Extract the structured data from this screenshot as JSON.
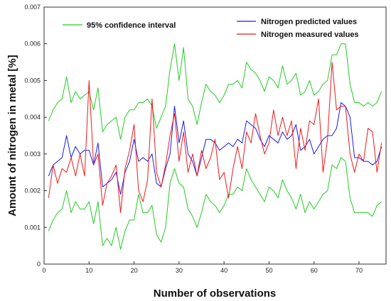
{
  "chart_data": {
    "type": "line",
    "xlabel": "Number of observations",
    "ylabel": "Amount of nitrogen in metal [%]",
    "xlim": [
      0,
      76
    ],
    "ylim": [
      0,
      0.007
    ],
    "xticks": [
      0,
      10,
      20,
      30,
      40,
      50,
      60,
      70
    ],
    "yticks": [
      0,
      0.001,
      0.002,
      0.003,
      0.004,
      0.005,
      0.006,
      0.007
    ],
    "ytick_labels": [
      "0",
      "0.001",
      "0.002",
      "0.003",
      "0.004",
      "0.005",
      "0.006",
      "0.007"
    ],
    "grid": false,
    "legend": [
      {
        "name": "95% confidence interval",
        "color": "#22cc22"
      },
      {
        "name": "Nitrogen predicted values",
        "color": "#1a1aee"
      },
      {
        "name": "Nitrogen measured values",
        "color": "#ee1a1a"
      }
    ],
    "x": [
      1,
      2,
      3,
      4,
      5,
      6,
      7,
      8,
      9,
      10,
      11,
      12,
      13,
      14,
      15,
      16,
      17,
      18,
      19,
      20,
      21,
      22,
      23,
      24,
      25,
      26,
      27,
      28,
      29,
      30,
      31,
      32,
      33,
      34,
      35,
      36,
      37,
      38,
      39,
      40,
      41,
      42,
      43,
      44,
      45,
      46,
      47,
      48,
      49,
      50,
      51,
      52,
      53,
      54,
      55,
      56,
      57,
      58,
      59,
      60,
      61,
      62,
      63,
      64,
      65,
      66,
      67,
      68,
      69,
      70,
      71,
      72,
      73,
      74,
      75
    ],
    "series": [
      {
        "name": "Nitrogen predicted values",
        "color": "#1a1aee",
        "values": [
          0.0024,
          0.0027,
          0.0028,
          0.0029,
          0.0035,
          0.0029,
          0.0032,
          0.003,
          0.0031,
          0.0031,
          0.0027,
          0.0033,
          0.0021,
          0.0022,
          0.0023,
          0.0025,
          0.0019,
          0.0025,
          0.0028,
          0.0034,
          0.0028,
          0.0029,
          0.0028,
          0.003,
          0.0022,
          0.0021,
          0.0026,
          0.003,
          0.0043,
          0.0033,
          0.0039,
          0.003,
          0.0028,
          0.0024,
          0.0029,
          0.0034,
          0.0034,
          0.0033,
          0.0031,
          0.0032,
          0.0033,
          0.0032,
          0.0034,
          0.0033,
          0.0039,
          0.0038,
          0.0037,
          0.0034,
          0.0032,
          0.0035,
          0.0034,
          0.0033,
          0.0036,
          0.0034,
          0.0035,
          0.0038,
          0.0031,
          0.0032,
          0.0034,
          0.003,
          0.0032,
          0.0034,
          0.0035,
          0.0035,
          0.0037,
          0.0044,
          0.0043,
          0.004,
          0.0029,
          0.0029,
          0.0028,
          0.0028,
          0.0027,
          0.0028,
          0.0032
        ]
      },
      {
        "name": "Nitrogen measured values",
        "color": "#ee1a1a",
        "values": [
          0.0018,
          0.0027,
          0.0022,
          0.0026,
          0.0025,
          0.0029,
          0.0024,
          0.003,
          0.0024,
          0.005,
          0.0027,
          0.003,
          0.0016,
          0.0022,
          0.0024,
          0.0027,
          0.0014,
          0.0026,
          0.0031,
          0.0038,
          0.002,
          0.0017,
          0.0023,
          0.0045,
          0.0025,
          0.0021,
          0.0027,
          0.0035,
          0.0041,
          0.0028,
          0.0036,
          0.0025,
          0.003,
          0.0024,
          0.0031,
          0.0026,
          0.0029,
          0.0034,
          0.0023,
          0.0025,
          0.0018,
          0.0026,
          0.0032,
          0.0026,
          0.0036,
          0.0033,
          0.0041,
          0.0035,
          0.003,
          0.0033,
          0.0042,
          0.0035,
          0.004,
          0.0035,
          0.0039,
          0.0026,
          0.0037,
          0.0031,
          0.0039,
          0.0038,
          0.0045,
          0.0025,
          0.0034,
          0.0055,
          0.0042,
          0.0043,
          0.0043,
          0.003,
          0.0025,
          0.003,
          0.0028,
          0.0037,
          0.0036,
          0.0025,
          0.0033
        ]
      },
      {
        "name": "95% confidence interval (upper)",
        "color": "#22cc22",
        "values": [
          0.0039,
          0.0042,
          0.0044,
          0.0045,
          0.0051,
          0.0044,
          0.0047,
          0.0045,
          0.0046,
          0.0047,
          0.0042,
          0.0048,
          0.0036,
          0.0038,
          0.0039,
          0.004,
          0.0034,
          0.004,
          0.0042,
          0.0042,
          0.0044,
          0.0044,
          0.0045,
          0.0043,
          0.0037,
          0.004,
          0.0043,
          0.0053,
          0.006,
          0.005,
          0.0059,
          0.0045,
          0.0043,
          0.0038,
          0.0044,
          0.0049,
          0.0047,
          0.0046,
          0.0044,
          0.0046,
          0.0049,
          0.0049,
          0.005,
          0.0048,
          0.0055,
          0.0053,
          0.0052,
          0.005,
          0.0047,
          0.0051,
          0.005,
          0.0048,
          0.0054,
          0.0049,
          0.005,
          0.0052,
          0.0046,
          0.0047,
          0.005,
          0.0046,
          0.0047,
          0.0049,
          0.005,
          0.0057,
          0.0057,
          0.006,
          0.006,
          0.0049,
          0.0044,
          0.0044,
          0.0043,
          0.0044,
          0.0043,
          0.0044,
          0.0047
        ]
      },
      {
        "name": "95% confidence interval (lower)",
        "color": "#22cc22",
        "values": [
          0.0009,
          0.0012,
          0.0014,
          0.0015,
          0.002,
          0.0014,
          0.0017,
          0.0015,
          0.0015,
          0.0017,
          0.0011,
          0.0017,
          0.0005,
          0.0007,
          0.0005,
          0.001,
          0.0004,
          0.0009,
          0.0012,
          0.0012,
          0.0019,
          0.0014,
          0.0014,
          0.0016,
          0.0008,
          0.0006,
          0.001,
          0.0022,
          0.0026,
          0.0022,
          0.0021,
          0.0015,
          0.0013,
          0.001,
          0.0014,
          0.0019,
          0.0017,
          0.0016,
          0.0014,
          0.0016,
          0.0019,
          0.0019,
          0.0021,
          0.002,
          0.0026,
          0.0023,
          0.0021,
          0.0019,
          0.0017,
          0.0021,
          0.002,
          0.0018,
          0.0023,
          0.002,
          0.0018,
          0.0015,
          0.0019,
          0.0014,
          0.0017,
          0.0015,
          0.0017,
          0.0019,
          0.002,
          0.0027,
          0.0026,
          0.0029,
          0.0028,
          0.0018,
          0.0014,
          0.0014,
          0.0014,
          0.0014,
          0.0013,
          0.0016,
          0.0017
        ]
      }
    ]
  }
}
